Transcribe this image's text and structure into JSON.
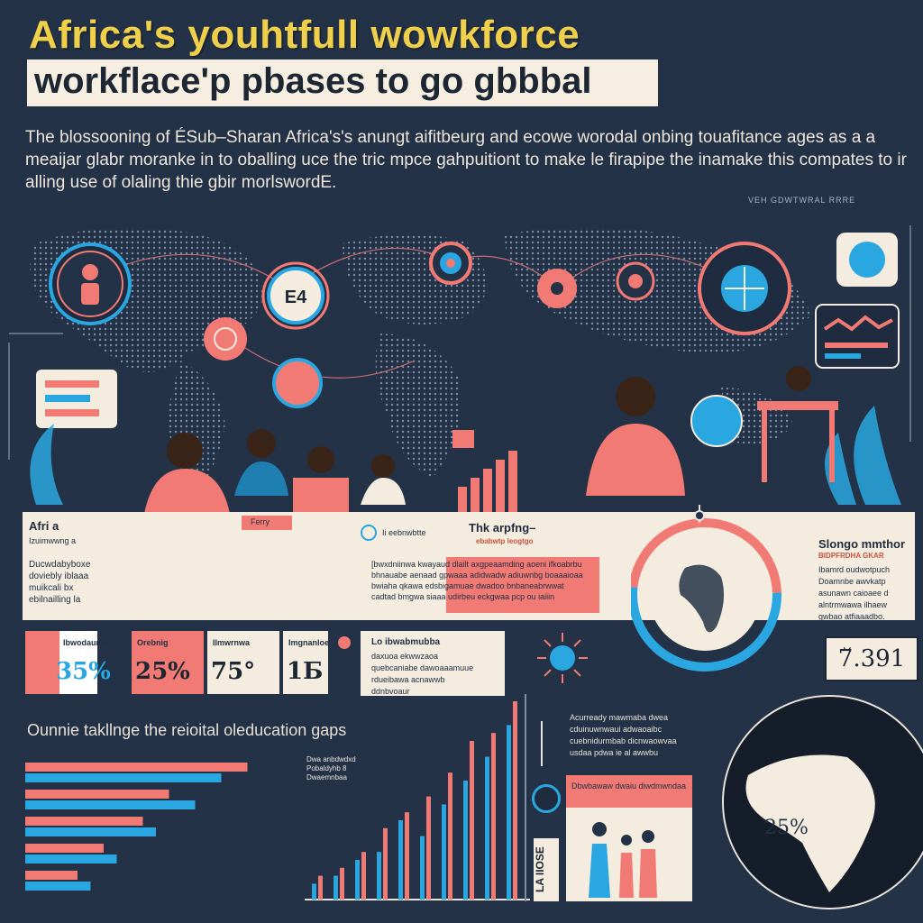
{
  "title": {
    "line1": "Africa's youhtfull wowkforce",
    "line2": "workflace'p pbases to go gbbbal"
  },
  "intro_text": "The blossooning of ÉSub–Sharan Africa's's anungt aifitbeurg and ecowe worodal onbing touafitance ages as a a meaijar glabr moranke in to oballing uce the tric mpce gahpuitiont to make le firapipe the inamake this compates to ir alling use of olaling thie gbir morlswordE.",
  "source_note": "VEH GDWTWRAL RRRE",
  "band": {
    "left_title": "Afri a",
    "left_sub": "Izuimwwng a",
    "left_body": "Ducwdabyboxe doviebly iblaaa muikcali bx ebilnailling la",
    "mid_chip": "Ferry",
    "mid_icon_label": "Ii eebnwbtte",
    "center_title": "Thk arpfng–",
    "center_sub": "ebabwtp leogtgo",
    "center_body": "[bwxdniinwa kwayaud dlailt axgpeaamding aoeni ifkoabrbu bhnauabe aenaad gpwaaa adidwadw adiuwnbg boaaaioaa bwiaha qkawa edsbigamuae dwadoo bnbaneabrwwat cadtad bmgwa siaaa udirbeu eckgwaa pcp ou iaiiin",
    "right_title": "Slongo mmthor",
    "right_sub": "BIDPFRDHA GKAR",
    "right_body": "Ibamrd oudwotpuch Doamnbe awvkatp asunawn caioaee d alntrmwawa ilhaew gwbao atfiaaadbo."
  },
  "stats": [
    {
      "label": "Ibwodaunaa",
      "value": "35%",
      "bg": "#ffffff",
      "accent": "#2aa7e0"
    },
    {
      "label": "Orebnig",
      "value": "25%",
      "bg": "#f27a74",
      "accent": "#1d2633"
    },
    {
      "label": "Ilmwrnwa",
      "value": "75°",
      "bg": "#f4eddf",
      "accent": "#1d2633"
    },
    {
      "label": "Imgnanloe",
      "value": "1Б",
      "bg": "#f4eddf",
      "accent": "#1d2633"
    }
  ],
  "desc_box": {
    "title": "Lo ibwabmubba",
    "body": "daxuoa ekwwzaoa quebcaniabe dawoaaamuue rdueibawa acnawwb ddnbvoaur"
  },
  "section2_title": "Ounnie takllnge the reioital oleducation gaps",
  "chart_legend": "Dwa anbdwdxd Pobaldyhb 8 Dwaemnbaa",
  "big_value": "7̆.391",
  "globe_pct": "25%",
  "side_box_text": "Acurready mawmaba dwea cduinuwnwaui adwaoaibc cuebnidurmbab dicnwaowvaa usdaa pdwa ie al awwbu",
  "lower_strip_text": "Dbwbawaw dwaiu diwdmwndaa",
  "vertical_label": "LA IIOSE",
  "colors": {
    "navy": "#233246",
    "pink": "#f27a74",
    "blue": "#2aa7e0",
    "cream": "#f4eddf",
    "yellow": "#f0cf4a"
  },
  "chart_data": {
    "type": "bar",
    "series": [
      {
        "values": [
          2,
          3,
          5,
          6,
          10,
          8,
          12,
          15,
          18,
          22
        ]
      },
      {
        "values": [
          3,
          4,
          6,
          9,
          11,
          13,
          16,
          20,
          21,
          25
        ]
      }
    ]
  },
  "hbar_data": {
    "pink": [
      0.85,
      0.55,
      0.45,
      0.3,
      0.2
    ],
    "blue": [
      0.75,
      0.65,
      0.5,
      0.35,
      0.25
    ]
  }
}
